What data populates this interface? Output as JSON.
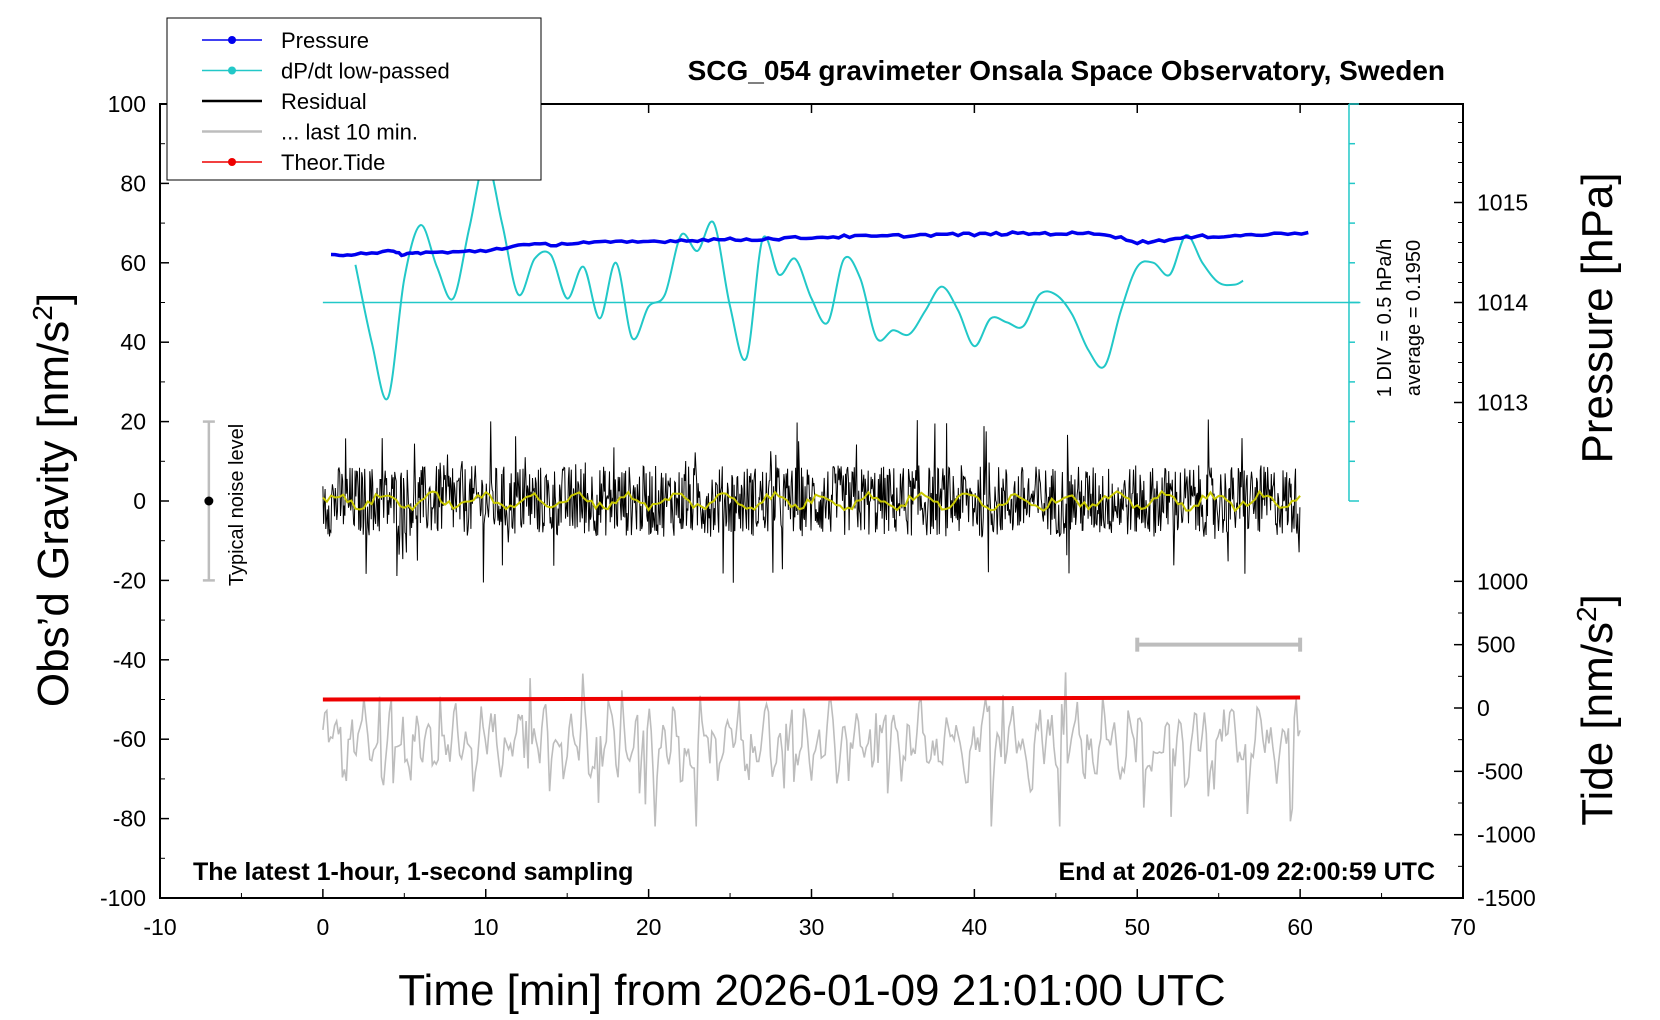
{
  "chart_data": {
    "type": "line",
    "title": "SCG_054 gravimeter Onsala Space Observatory, Sweden",
    "xlabel": "Time [min] from 2026-01-09 21:01:00 UTC",
    "xlim": [
      -10,
      70
    ],
    "xticks": [
      "-10",
      "0",
      "10",
      "20",
      "30",
      "40",
      "50",
      "60",
      "70"
    ],
    "y_left": {
      "label": "Obs’d Gravity [nm/s²]",
      "label_main": "Obs’d Gravity [nm/s",
      "label_sup": "2",
      "label_end": "]",
      "lim": [
        -100,
        100
      ],
      "ticks": [
        "100",
        "80",
        "60",
        "40",
        "20",
        "0",
        "-20",
        "-40",
        "-60",
        "-80",
        "-100"
      ]
    },
    "y_right_pressure": {
      "label": "Pressure [hPa]",
      "ticks": [
        "1015",
        "1014",
        "1013"
      ]
    },
    "y_right_tide": {
      "label": "Tide [nm/s²]",
      "label_main": "Tide [nm/s",
      "label_sup": "2",
      "label_end": "]",
      "lim": [
        -1500,
        1000
      ],
      "ticks": [
        "1000",
        "500",
        "0",
        "-500",
        "-1000",
        "-1500"
      ]
    },
    "legend": {
      "position": "top-left",
      "entries": [
        {
          "name": "Pressure",
          "color": "#0000ee",
          "marker": true
        },
        {
          "name": "dP/dt low-passed",
          "color": "#22c8c8",
          "marker": true
        },
        {
          "name": "Residual",
          "color": "#000000",
          "marker": false
        },
        {
          "name": "... last 10 min.",
          "color": "#bdbdbd",
          "marker": false
        },
        {
          "name": "Theor.Tide",
          "color": "#ee0000",
          "marker": true
        }
      ]
    },
    "annotations": {
      "bottom_left": "The latest 1-hour, 1-second sampling",
      "bottom_right": "End at 2026-01-09 22:00:59 UTC",
      "noise": "Typical noise level",
      "div": "1 DIV = 0.5 hPa/h",
      "average": "average = 0.1950"
    },
    "noise_bar": {
      "x": -7,
      "y_range": [
        -20,
        20
      ],
      "center": 0
    },
    "last10_bar": {
      "x_range": [
        50,
        60
      ]
    },
    "series": [
      {
        "name": "Pressure",
        "color": "#0000ee",
        "x": [
          0.5,
          2,
          4,
          5,
          6,
          8,
          10,
          12,
          14,
          16,
          18,
          20,
          22,
          24,
          26,
          28,
          30,
          32,
          34,
          36,
          38,
          40,
          42,
          44,
          46,
          48,
          50,
          52,
          54,
          56,
          58,
          60.5
        ],
        "y": [
          1014.47,
          1014.49,
          1014.51,
          1014.48,
          1014.5,
          1014.5,
          1014.52,
          1014.57,
          1014.58,
          1014.6,
          1014.6,
          1014.61,
          1014.62,
          1014.63,
          1014.63,
          1014.64,
          1014.65,
          1014.66,
          1014.66,
          1014.67,
          1014.68,
          1014.68,
          1014.69,
          1014.69,
          1014.69,
          1014.69,
          1014.6,
          1014.63,
          1014.66,
          1014.67,
          1014.68,
          1014.7
        ]
      },
      {
        "name": "dP/dt low-passed",
        "color": "#22c8c8",
        "x": [
          2,
          3,
          4,
          5,
          6,
          7,
          8,
          9,
          10,
          11,
          12,
          13,
          14,
          15,
          16,
          17,
          18,
          19,
          20,
          21,
          22,
          23,
          24,
          25,
          26,
          27,
          28,
          29,
          30,
          31,
          32,
          33,
          34,
          35,
          36,
          37,
          38,
          39,
          40,
          41,
          42,
          43,
          44,
          45,
          46,
          47,
          48,
          49,
          50,
          51,
          52,
          53,
          54,
          55,
          56,
          56.5
        ],
        "y": [
          59.5,
          40,
          26,
          56,
          69.5,
          59,
          51,
          69,
          86,
          70,
          52,
          61,
          62,
          51,
          59,
          46,
          60,
          41,
          49,
          52,
          67,
          63,
          70,
          49,
          36,
          66,
          57,
          61,
          51,
          45,
          61,
          56,
          41,
          43,
          42,
          48,
          54,
          48,
          39,
          46,
          45,
          44,
          52,
          52,
          47,
          38,
          34,
          48,
          59,
          60,
          57,
          67,
          60,
          55,
          54.5,
          55.5
        ]
      },
      {
        "name": "Residual",
        "color": "#000000",
        "x_range": [
          0,
          60
        ],
        "y_range": [
          -22,
          23
        ]
      },
      {
        "name": "... last 10 min.",
        "color": "#bdbdbd",
        "x_range": [
          0,
          60
        ],
        "y_range": [
          -82,
          -40
        ]
      },
      {
        "name": "Theor.Tide",
        "color": "#ee0000",
        "x": [
          0,
          60
        ],
        "y": [
          -50,
          -49.5
        ]
      }
    ]
  }
}
